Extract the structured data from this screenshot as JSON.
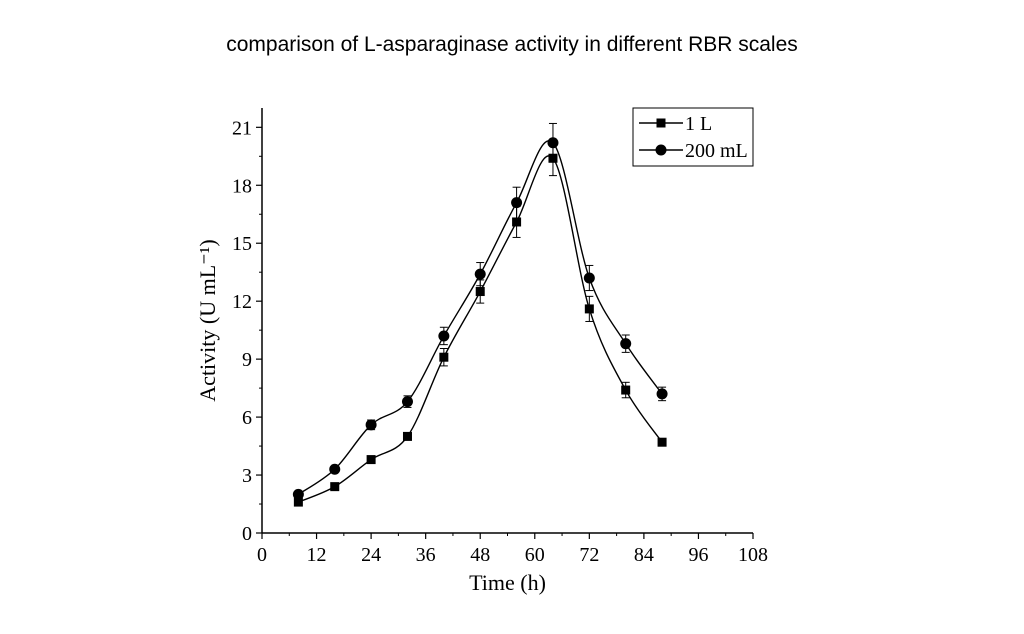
{
  "chart_data": {
    "type": "line",
    "title": "comparison of L-asparaginase activity in different RBR scales",
    "xlabel": "Time (h)",
    "ylabel": "Activity (U mL⁻¹)",
    "xlim": [
      0,
      108
    ],
    "ylim": [
      0,
      22
    ],
    "xticks": [
      0,
      12,
      24,
      36,
      48,
      60,
      72,
      84,
      96,
      108
    ],
    "yticks": [
      0,
      3,
      6,
      9,
      12,
      15,
      18,
      21
    ],
    "grid": false,
    "legend_position": "top-right",
    "series": [
      {
        "name": "1 L",
        "marker": "square",
        "x": [
          8,
          16,
          24,
          32,
          40,
          48,
          56,
          64,
          72,
          80,
          88
        ],
        "y": [
          1.6,
          2.4,
          3.8,
          5.0,
          9.1,
          12.5,
          16.1,
          19.4,
          11.6,
          7.4,
          4.7
        ],
        "error": [
          0.0,
          0.0,
          0.15,
          0.0,
          0.45,
          0.6,
          0.8,
          0.9,
          0.65,
          0.4,
          0.0
        ]
      },
      {
        "name": "200 mL",
        "marker": "circle",
        "x": [
          8,
          16,
          24,
          32,
          40,
          48,
          56,
          64,
          72,
          80,
          88
        ],
        "y": [
          2.0,
          3.3,
          5.6,
          6.8,
          10.2,
          13.4,
          17.1,
          20.2,
          13.2,
          9.8,
          7.2
        ],
        "error": [
          0.0,
          0.0,
          0.25,
          0.3,
          0.45,
          0.6,
          0.8,
          1.0,
          0.65,
          0.45,
          0.35
        ]
      }
    ]
  },
  "colors": {
    "line": "#000000",
    "background": "#ffffff"
  }
}
